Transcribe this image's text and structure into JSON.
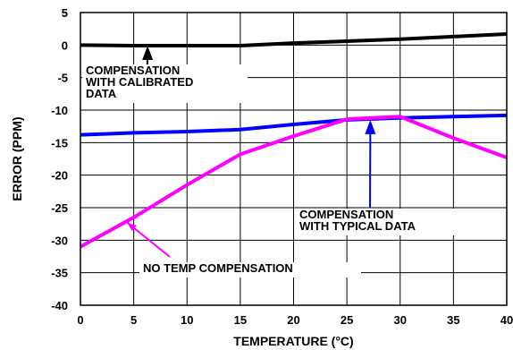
{
  "chart_data": {
    "type": "line",
    "xlabel": "TEMPERATURE (°C)",
    "ylabel": "ERROR (PPM)",
    "xlim": [
      0,
      40
    ],
    "ylim": [
      -40,
      5
    ],
    "x_ticks": [
      0,
      5,
      10,
      15,
      20,
      25,
      30,
      35,
      40
    ],
    "y_ticks": [
      5,
      0,
      -5,
      -10,
      -15,
      -20,
      -25,
      -30,
      -35,
      -40
    ],
    "x_tick_labels": [
      "0",
      "5",
      "10",
      "15",
      "20",
      "25",
      "30",
      "35",
      "40"
    ],
    "y_tick_labels": [
      "5",
      "0",
      "-5",
      "-10",
      "-15",
      "-20",
      "-25",
      "-30",
      "-35",
      "-40"
    ],
    "grid": true,
    "series": [
      {
        "id": "calibrated",
        "color": "#000000",
        "x": [
          0,
          5,
          10,
          15,
          20,
          25,
          30,
          35,
          40
        ],
        "y": [
          0,
          -0.1,
          -0.1,
          -0.1,
          0.3,
          0.6,
          0.9,
          1.3,
          1.7
        ]
      },
      {
        "id": "typical",
        "color": "#0000ff",
        "x": [
          0,
          5,
          10,
          15,
          20,
          25,
          30,
          35,
          40
        ],
        "y": [
          -13.8,
          -13.5,
          -13.3,
          -13.0,
          -12.2,
          -11.5,
          -11.2,
          -11.0,
          -10.8
        ]
      },
      {
        "id": "no_comp",
        "color": "#ff00ff",
        "x": [
          0,
          5,
          10,
          15,
          20,
          25,
          30,
          35,
          40
        ],
        "y": [
          -31.0,
          -26.5,
          -21.5,
          -16.8,
          -14.0,
          -11.4,
          -11.0,
          -14.3,
          -17.3
        ]
      }
    ],
    "annotations": [
      {
        "id": "calibrated_label",
        "lines": [
          "COMPENSATION",
          "WITH CALIBRATED",
          "DATA"
        ],
        "arrow_to": [
          6.3,
          -0.1
        ],
        "arrow_color": "#000000"
      },
      {
        "id": "typical_label",
        "lines": [
          "COMPENSATION",
          "WITH TYPICAL DATA"
        ],
        "arrow_to": [
          27.2,
          -11.5
        ],
        "arrow_color": "#0000ff"
      },
      {
        "id": "no_comp_label",
        "lines": [
          "NO TEMP COMPENSATION"
        ],
        "arrow_to": [
          4.4,
          -27.3
        ],
        "arrow_color": "#ff00ff"
      }
    ]
  }
}
